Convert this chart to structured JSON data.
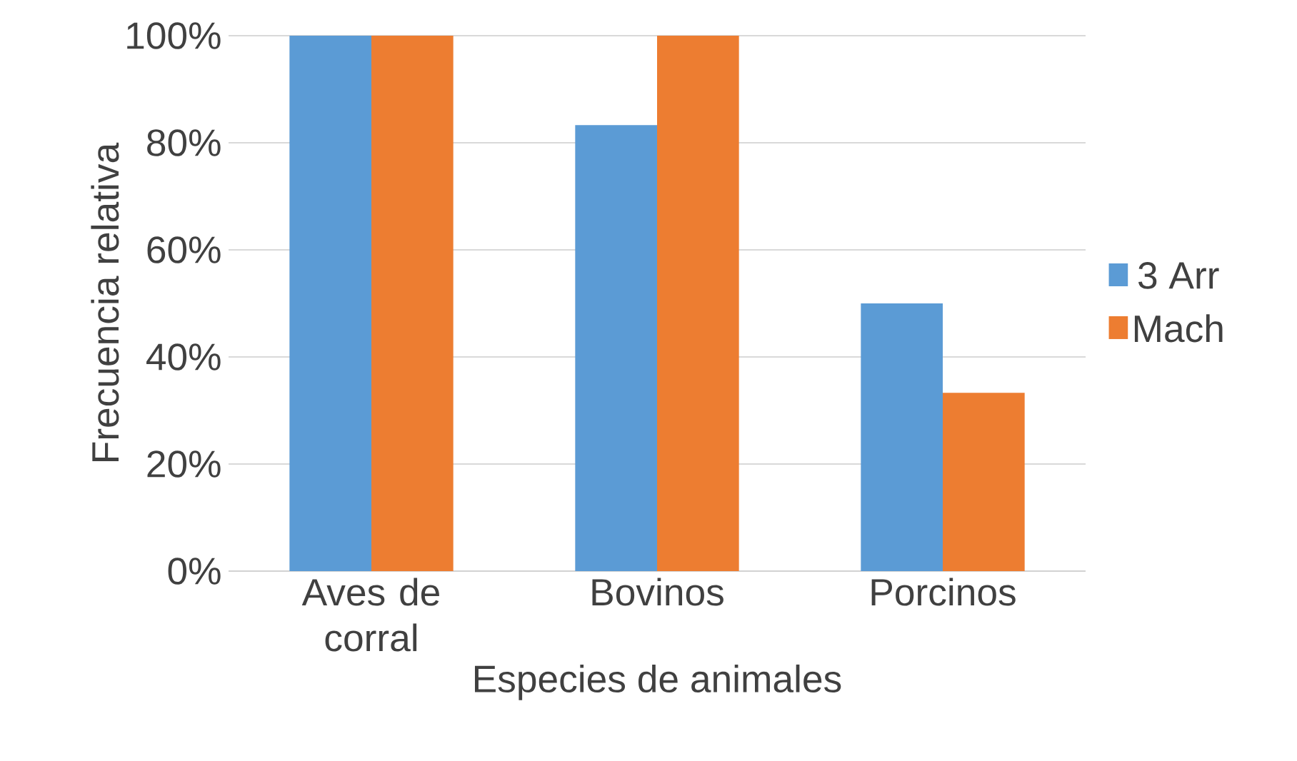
{
  "chart_data": {
    "type": "bar",
    "xlabel": "Especies de animales",
    "ylabel": "Frecuencia relativa",
    "categories": [
      "Aves de corral",
      "Bovinos",
      "Porcinos"
    ],
    "series": [
      {
        "name": "3 Arr",
        "color": "#5b9bd5",
        "values": [
          100,
          83.3,
          50
        ]
      },
      {
        "name": "Mach",
        "color": "#ed7d31",
        "values": [
          100,
          100,
          33.3
        ]
      }
    ],
    "ylim": [
      0,
      100
    ],
    "yticks": [
      {
        "value": 0,
        "label": "0%"
      },
      {
        "value": 20,
        "label": "20%"
      },
      {
        "value": 40,
        "label": "40%"
      },
      {
        "value": 60,
        "label": "60%"
      },
      {
        "value": 80,
        "label": "80%"
      },
      {
        "value": 100,
        "label": "100%"
      }
    ],
    "grid": "y",
    "legend": "right"
  }
}
